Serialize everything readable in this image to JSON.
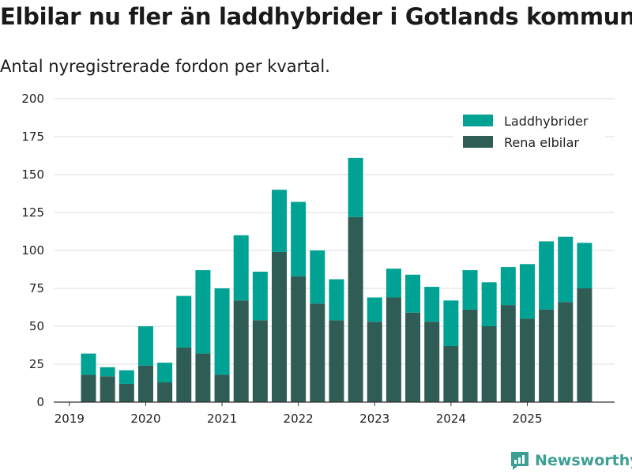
{
  "chart_data": {
    "type": "bar",
    "stacked": true,
    "title": "Elbilar nu fler än laddhybrider i Gotlands kommun",
    "subtitle": "Antal nyregistrerade fordon per kvartal.",
    "xlabel": "",
    "ylabel": "",
    "ylim": [
      0,
      200
    ],
    "yticks": [
      "0",
      "25",
      "50",
      "75",
      "100",
      "125",
      "150",
      "175",
      "200"
    ],
    "xticks": [
      "2019",
      "2020",
      "2021",
      "2022",
      "2023",
      "2024",
      "2025"
    ],
    "grid": true,
    "legend_position": "top-right",
    "categories": [
      "2019 Q2",
      "2019 Q3",
      "2019 Q4",
      "2020 Q1",
      "2020 Q2",
      "2020 Q3",
      "2020 Q4",
      "2021 Q1",
      "2021 Q2",
      "2021 Q3",
      "2021 Q4",
      "2022 Q1",
      "2022 Q2",
      "2022 Q3",
      "2022 Q4",
      "2023 Q1",
      "2023 Q2",
      "2023 Q3",
      "2023 Q4",
      "2024 Q1",
      "2024 Q2",
      "2024 Q3",
      "2024 Q4",
      "2025 Q1",
      "2025 Q2",
      "2025 Q3",
      "2025 Q4"
    ],
    "series": [
      {
        "name": "Rena elbilar",
        "color": "#2f5c55",
        "values": [
          18,
          17,
          12,
          24,
          13,
          36,
          32,
          18,
          67,
          54,
          99,
          83,
          65,
          54,
          122,
          53,
          69,
          59,
          53,
          37,
          61,
          50,
          64,
          55,
          61,
          66,
          75
        ]
      },
      {
        "name": "Laddhybrider",
        "color": "#00a294",
        "values": [
          14,
          6,
          9,
          26,
          13,
          34,
          55,
          57,
          43,
          32,
          41,
          49,
          35,
          27,
          39,
          16,
          19,
          25,
          23,
          30,
          26,
          29,
          25,
          36,
          45,
          43,
          30
        ]
      }
    ],
    "legend": [
      "Laddhybrider",
      "Rena elbilar"
    ]
  },
  "branding": {
    "name": "Newsworthy",
    "icon": "newsworthy-logo-icon",
    "color": "#3d9e94"
  }
}
